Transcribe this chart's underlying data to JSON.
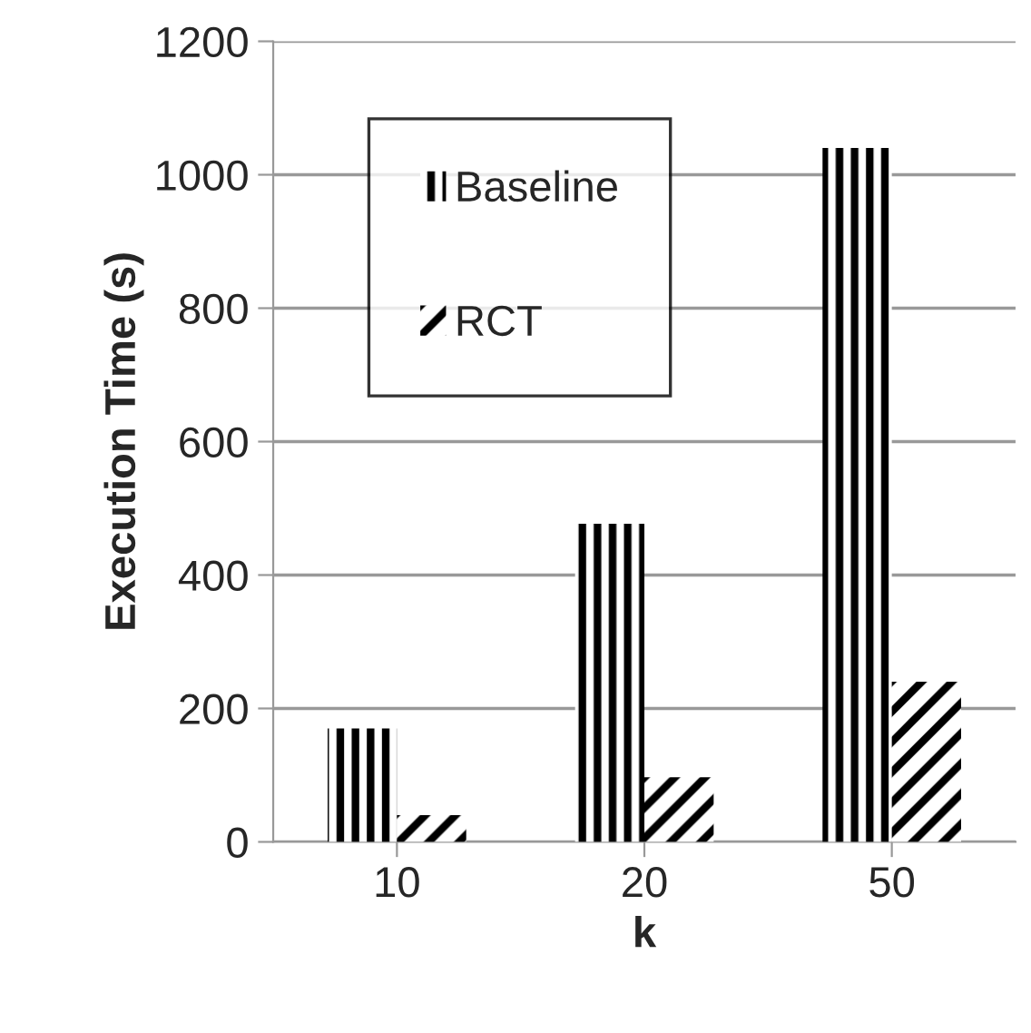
{
  "chart_data": {
    "type": "bar",
    "xlabel": "k",
    "ylabel": "Execution Time (s)",
    "categories": [
      "10",
      "20",
      "50"
    ],
    "series": [
      {
        "name": "Baseline",
        "color": "#000000",
        "values": [
          170,
          477,
          1040
        ]
      },
      {
        "name": "RCT",
        "color": "#000000",
        "values": [
          40,
          97,
          240
        ]
      }
    ],
    "ylim": [
      0,
      1200
    ],
    "yticks": [
      0,
      200,
      400,
      600,
      800,
      1000,
      1200
    ],
    "grid": "y",
    "legend": "top left"
  }
}
